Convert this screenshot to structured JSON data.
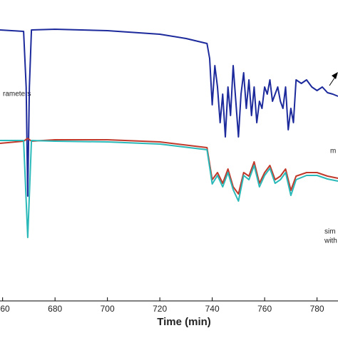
{
  "chart_data": {
    "type": "line",
    "x_label": "Time (min)",
    "xlim": [
      659,
      788
    ],
    "xticks": [
      660,
      680,
      700,
      720,
      740,
      760,
      780
    ],
    "ylim": [
      0,
      422
    ],
    "annotations": [
      "rameters",
      "m",
      "sim",
      "with"
    ],
    "series": [
      {
        "color": "#1c2a9c",
        "x": [
          659,
          668,
          669,
          669.6,
          670.2,
          671,
          680,
          700,
          720,
          730,
          738,
          739,
          740,
          741,
          742,
          743,
          744,
          745,
          746,
          747,
          748,
          749,
          750,
          751,
          752,
          753,
          754,
          755,
          756,
          757,
          758,
          759,
          760,
          761,
          762,
          763,
          764,
          765,
          766,
          767,
          768,
          769,
          770,
          771,
          772,
          774,
          776,
          778,
          780,
          782,
          784,
          786,
          788
        ],
        "values": [
          380,
          378,
          300,
          147,
          300,
          380,
          381,
          379,
          374,
          368,
          361,
          340,
          275,
          330,
          300,
          250,
          290,
          230,
          300,
          260,
          330,
          280,
          230,
          290,
          320,
          270,
          310,
          260,
          300,
          250,
          280,
          270,
          300,
          290,
          310,
          280,
          290,
          300,
          280,
          270,
          300,
          240,
          270,
          250,
          310,
          305,
          310,
          300,
          295,
          300,
          292,
          290,
          287
        ]
      },
      {
        "color": "#c0392b",
        "x": [
          659,
          668,
          669.6,
          671,
          680,
          700,
          720,
          738,
          740,
          742,
          744,
          746,
          748,
          750,
          752,
          754,
          756,
          758,
          760,
          762,
          764,
          766,
          768,
          770,
          772,
          776,
          780,
          784,
          788
        ],
        "values": [
          221,
          224,
          228,
          224,
          226,
          226,
          223,
          215,
          170,
          180,
          165,
          185,
          160,
          150,
          180,
          175,
          195,
          165,
          180,
          190,
          170,
          175,
          185,
          155,
          175,
          180,
          180,
          175,
          172
        ]
      },
      {
        "color": "#2bb8b8",
        "x": [
          659,
          668,
          669.6,
          671,
          680,
          700,
          720,
          738,
          740,
          742,
          744,
          746,
          748,
          750,
          752,
          754,
          756,
          758,
          760,
          762,
          764,
          766,
          768,
          770,
          772,
          776,
          780,
          784,
          788
        ],
        "values": [
          225,
          225,
          89,
          225,
          224,
          223,
          220,
          212,
          164,
          176,
          160,
          180,
          156,
          140,
          176,
          170,
          190,
          160,
          176,
          186,
          165,
          170,
          180,
          148,
          170,
          176,
          176,
          171,
          168
        ]
      }
    ]
  }
}
